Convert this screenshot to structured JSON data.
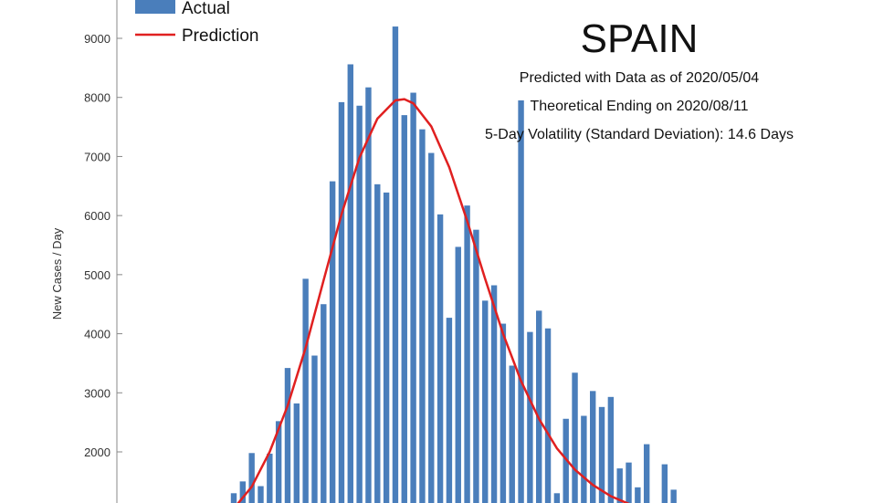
{
  "chart_data": {
    "type": "bar",
    "title": "SPAIN",
    "annotations": [
      "Predicted with Data as of 2020/05/04",
      "Theoretical Ending on 2020/08/11",
      "5-Day Volatility (Standard Deviation): 14.6 Days"
    ],
    "ylabel": "New Cases / Day",
    "xlabel": "",
    "yticks": [
      2000,
      3000,
      4000,
      5000,
      6000,
      7000,
      8000,
      9000
    ],
    "ylim": [
      1000,
      9800
    ],
    "grid": false,
    "legend": {
      "placement": "top-left",
      "entries": [
        "Actual",
        "Prediction"
      ]
    },
    "colors": {
      "actual": "#4a7ebb",
      "prediction": "#e02020"
    },
    "series": [
      {
        "name": "Actual",
        "kind": "bar",
        "values": [
          1300,
          1500,
          1980,
          1420,
          1970,
          2520,
          3420,
          2820,
          4930,
          3630,
          4500,
          6580,
          7920,
          8560,
          7860,
          8170,
          6530,
          6390,
          9200,
          7700,
          8080,
          7460,
          7060,
          6020,
          4270,
          5470,
          6170,
          5760,
          4560,
          4820,
          4170,
          3460,
          7950,
          4030,
          4390,
          4090,
          1300,
          2560,
          3340,
          2610,
          3030,
          2760,
          2930,
          1720,
          1820,
          1400,
          2130,
          1000,
          1790,
          1360
        ]
      },
      {
        "name": "Prediction",
        "kind": "line",
        "x_index": [
          0,
          2,
          4,
          6,
          8,
          10,
          12,
          14,
          16,
          18,
          19,
          20,
          22,
          24,
          26,
          28,
          30,
          32,
          34,
          36,
          38,
          40,
          42,
          44,
          46,
          47
        ],
        "values": [
          1040,
          1410,
          2000,
          2780,
          3760,
          4900,
          6020,
          6980,
          7640,
          7950,
          7970,
          7900,
          7510,
          6820,
          5910,
          4930,
          4000,
          3200,
          2560,
          2060,
          1700,
          1440,
          1250,
          1120,
          1030,
          1000
        ]
      }
    ]
  }
}
